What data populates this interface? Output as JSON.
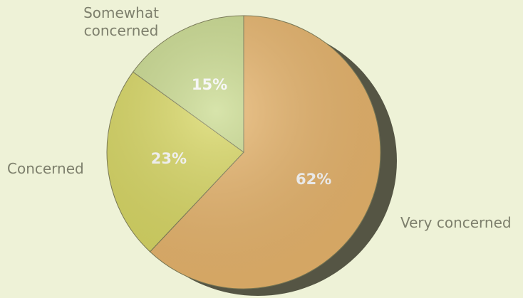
{
  "chart_data": {
    "type": "pie",
    "categories": [
      "Very concerned",
      "Concerned",
      "Somewhat concerned"
    ],
    "values": [
      62,
      23,
      15
    ],
    "value_labels": [
      "62%",
      "23%",
      "15%"
    ],
    "colors": [
      "#e8b56c",
      "#d9d863",
      "#cadb8f"
    ]
  }
}
